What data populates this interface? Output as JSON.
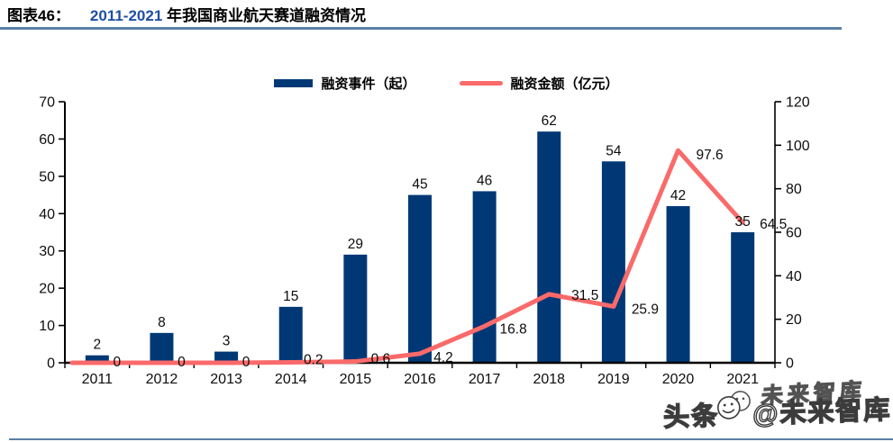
{
  "header": {
    "figure_label": "图表46：",
    "title_highlight": "2011-2021",
    "title_rest": " 年我国商业航天赛道融资情况",
    "underline_color": "#5a80a8"
  },
  "legend": [
    {
      "label": "融资事件（起）",
      "swatch": "bar-swatch",
      "color": "#003876"
    },
    {
      "label": "融资金额（亿元）",
      "swatch": "line-swatch",
      "color": "#fa6a6a"
    }
  ],
  "chart_data": {
    "type": "bar+line combo",
    "categories": [
      "2011",
      "2012",
      "2013",
      "2014",
      "2015",
      "2016",
      "2017",
      "2018",
      "2019",
      "2020",
      "2021"
    ],
    "series": [
      {
        "name": "融资事件（起）",
        "type": "bar",
        "axis": "left",
        "color": "#003876",
        "values": [
          2,
          8,
          3,
          15,
          29,
          45,
          46,
          62,
          54,
          42,
          35
        ],
        "labels": [
          "2",
          "8",
          "3",
          "15",
          "29",
          "45",
          "46",
          "62",
          "54",
          "42",
          "35"
        ]
      },
      {
        "name": "融资金额（亿元）",
        "type": "line",
        "axis": "right",
        "color": "#fa6a6a",
        "values": [
          0,
          0,
          0,
          0.2,
          0.6,
          4.2,
          16.8,
          31.5,
          25.9,
          97.6,
          64.5
        ],
        "labels": [
          "0",
          "0",
          "0",
          "0.2",
          "0.6",
          "4.2",
          "16.8",
          "31.5",
          "25.9",
          "97.6",
          "64.5"
        ]
      }
    ],
    "left_axis": {
      "min": 0,
      "max": 70,
      "step": 10,
      "ticks": [
        "0",
        "10",
        "20",
        "30",
        "40",
        "50",
        "60",
        "70"
      ]
    },
    "right_axis": {
      "min": 0,
      "max": 120,
      "step": 20,
      "ticks": [
        "0",
        "20",
        "40",
        "60",
        "80",
        "100",
        "120"
      ]
    },
    "grid": false,
    "legend_position": "top-center"
  },
  "watermark": {
    "prefix": "头条",
    "suffix": "@未来智库",
    "ghost": "未来智库",
    "face_icon": "smiley-face-icon"
  }
}
